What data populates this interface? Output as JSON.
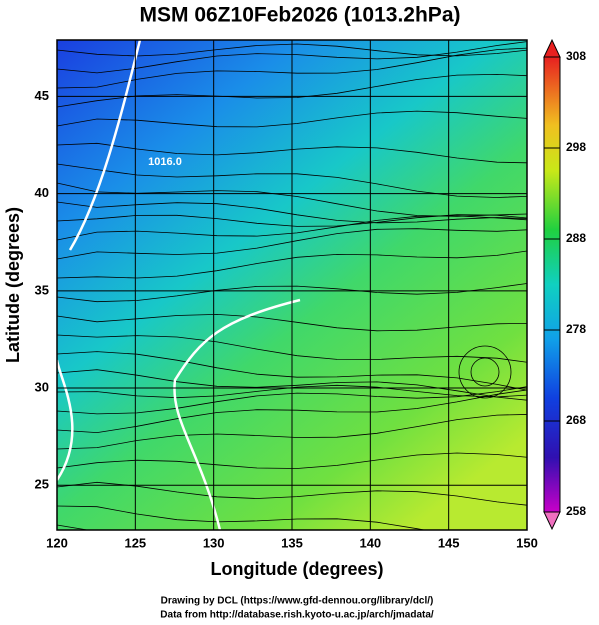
{
  "title": "MSM 06Z10Feb2026 (1013.2hPa)",
  "map": {
    "xlabel": "Longitude (degrees)",
    "ylabel": "Latitude  (degrees)",
    "xlim": [
      120,
      150
    ],
    "ylim": [
      22.7,
      47.9
    ],
    "xticks": [
      120,
      125,
      130,
      135,
      140,
      145,
      150
    ],
    "yticks": [
      25,
      30,
      35,
      40,
      45
    ],
    "contour_label": "1016.0"
  },
  "colorbar": {
    "lim": [
      258,
      308
    ],
    "ticks": [
      258,
      268,
      278,
      288,
      298,
      308
    ]
  },
  "footer": [
    "Drawing by DCL (https://www.gfd-dennou.org/library/dcl/)",
    "Data from http://database.rish.kyoto-u.ac.jp/arch/jmadata/"
  ]
}
